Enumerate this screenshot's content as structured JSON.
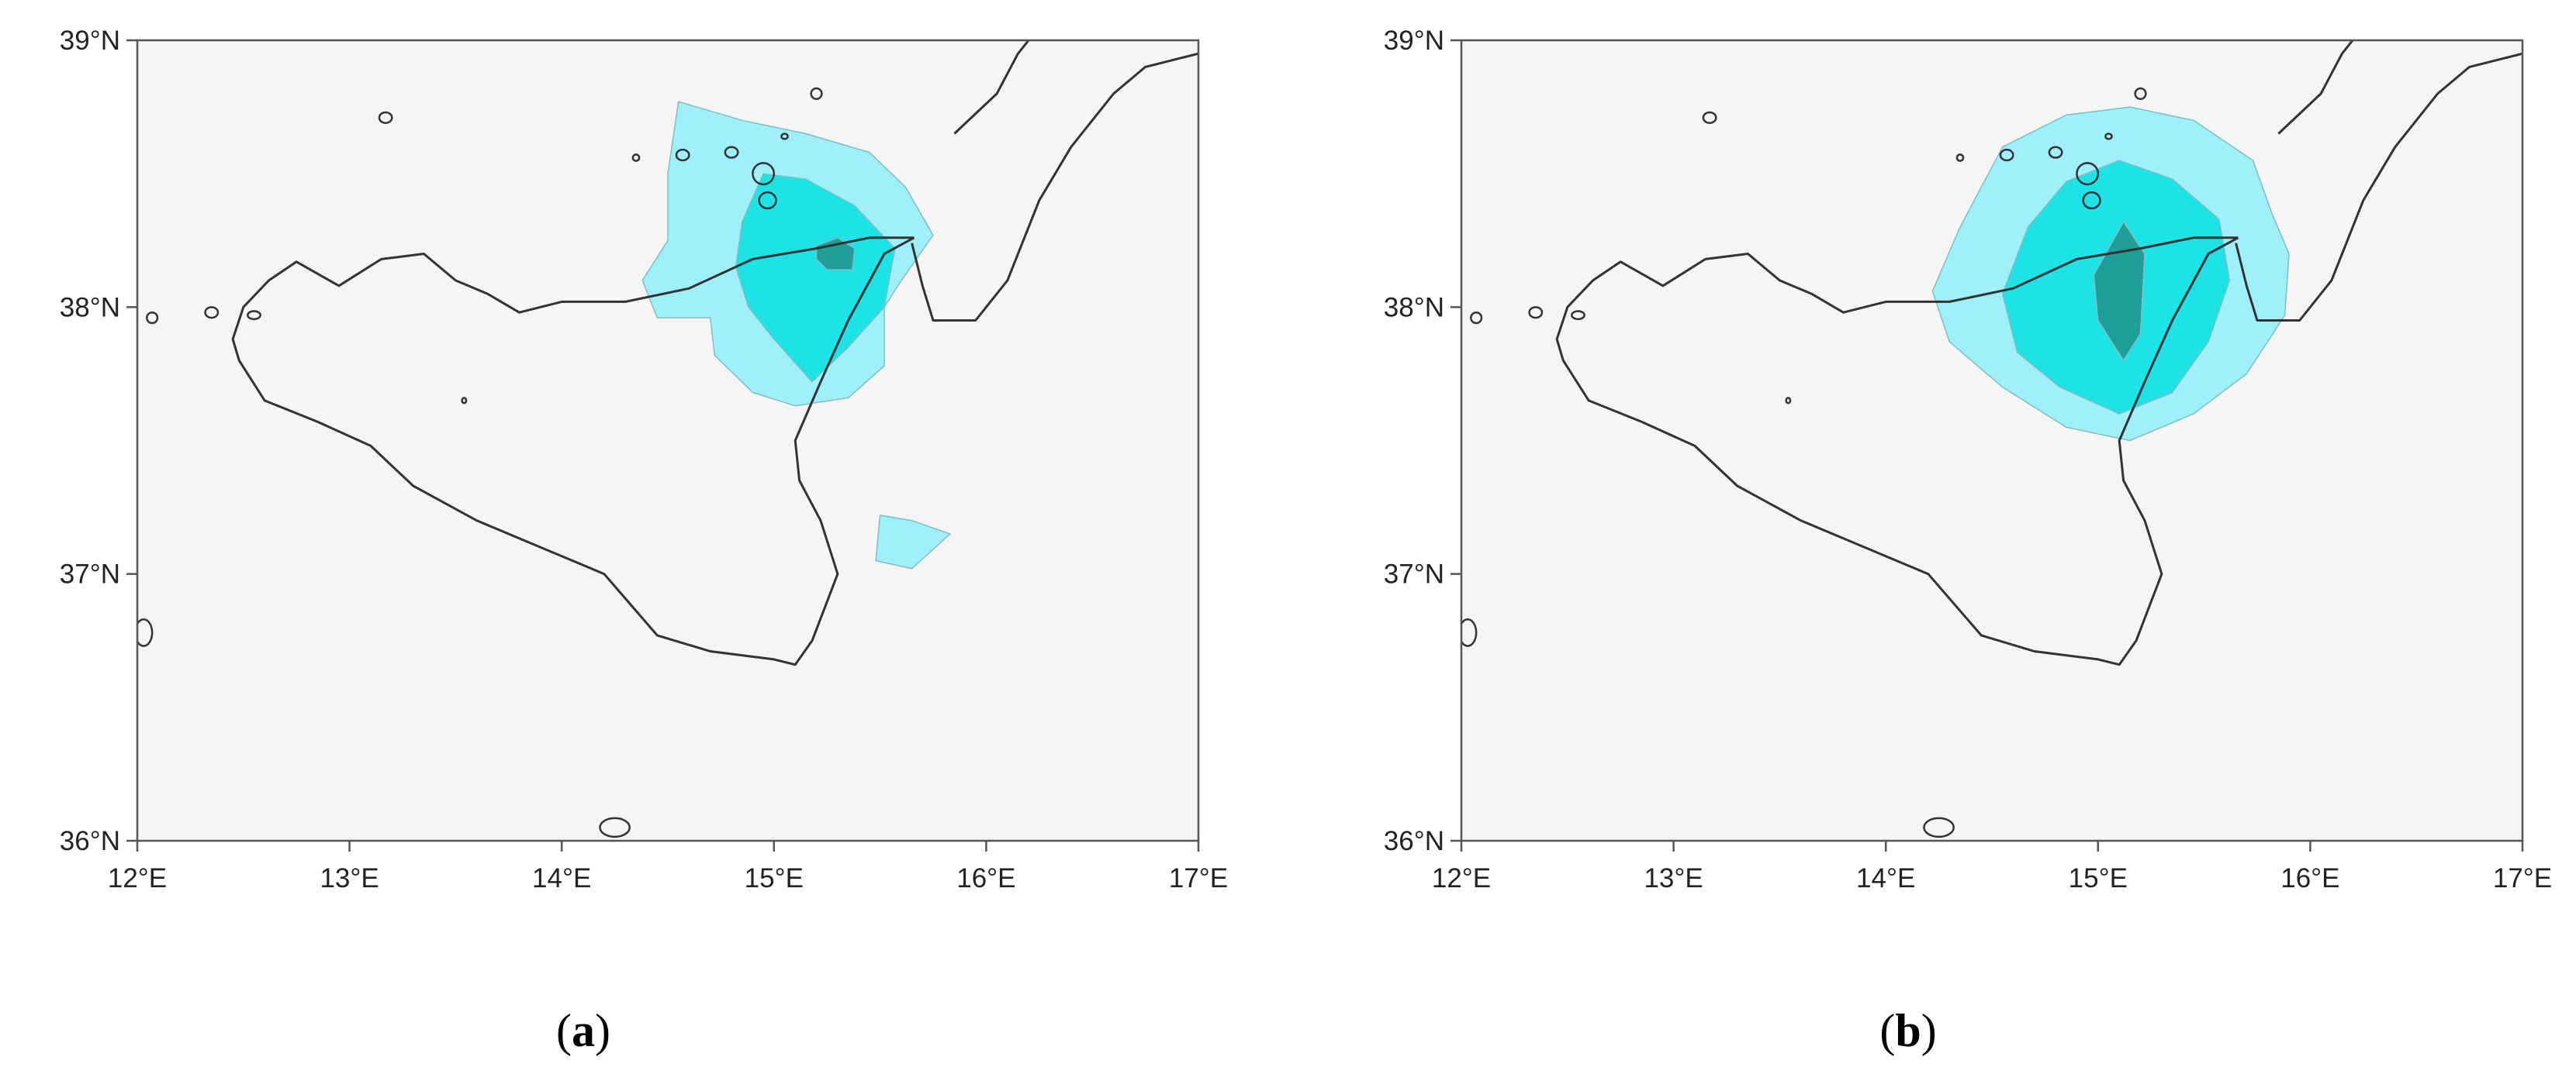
{
  "figure": {
    "panels": [
      {
        "caption": {
          "open": "(",
          "letter": "a",
          "close": ")"
        },
        "map_data": {
          "type": "map",
          "extent": {
            "lon": [
              12,
              17
            ],
            "lat": [
              36,
              39
            ]
          },
          "lon_ticks": [
            12,
            13,
            14,
            15,
            16,
            17
          ],
          "lat_ticks": [
            36,
            37,
            38,
            39
          ],
          "lon_tick_labels": [
            "12°E",
            "13°E",
            "14°E",
            "15°E",
            "16°E",
            "17°E"
          ],
          "lat_tick_labels": [
            "36°N",
            "37°N",
            "38°N",
            "39°N"
          ],
          "colors": {
            "background": "#f5f5f5",
            "frame": "#555555",
            "coast": "#333333"
          },
          "layers": [
            {
              "level": "low",
              "color": "#9ff0fb",
              "polygons": [
                [
                  [
                    14.55,
                    38.77
                  ],
                  [
                    14.85,
                    38.7
                  ],
                  [
                    15.15,
                    38.65
                  ],
                  [
                    15.45,
                    38.58
                  ],
                  [
                    15.62,
                    38.45
                  ],
                  [
                    15.75,
                    38.27
                  ],
                  [
                    15.6,
                    38.1
                  ],
                  [
                    15.52,
                    38.0
                  ],
                  [
                    15.52,
                    37.78
                  ],
                  [
                    15.35,
                    37.66
                  ],
                  [
                    15.1,
                    37.63
                  ],
                  [
                    14.9,
                    37.68
                  ],
                  [
                    14.72,
                    37.82
                  ],
                  [
                    14.7,
                    37.96
                  ],
                  [
                    14.45,
                    37.96
                  ],
                  [
                    14.38,
                    38.1
                  ],
                  [
                    14.5,
                    38.25
                  ],
                  [
                    14.5,
                    38.5
                  ]
                ],
                [
                  [
                    15.5,
                    37.22
                  ],
                  [
                    15.65,
                    37.2
                  ],
                  [
                    15.83,
                    37.15
                  ],
                  [
                    15.65,
                    37.02
                  ],
                  [
                    15.48,
                    37.05
                  ]
                ]
              ]
            },
            {
              "level": "mid",
              "color": "#1de2e6",
              "polygons": [
                [
                  [
                    14.95,
                    38.5
                  ],
                  [
                    15.15,
                    38.48
                  ],
                  [
                    15.38,
                    38.38
                  ],
                  [
                    15.57,
                    38.22
                  ],
                  [
                    15.52,
                    38.0
                  ],
                  [
                    15.35,
                    37.85
                  ],
                  [
                    15.18,
                    37.72
                  ],
                  [
                    15.0,
                    37.88
                  ],
                  [
                    14.88,
                    38.0
                  ],
                  [
                    14.82,
                    38.15
                  ],
                  [
                    14.85,
                    38.32
                  ]
                ]
              ]
            },
            {
              "level": "high",
              "color": "#1f9e9a",
              "polygons": [
                [
                  [
                    15.2,
                    38.23
                  ],
                  [
                    15.3,
                    38.26
                  ],
                  [
                    15.38,
                    38.22
                  ],
                  [
                    15.37,
                    38.14
                  ],
                  [
                    15.25,
                    38.14
                  ],
                  [
                    15.2,
                    38.18
                  ]
                ]
              ]
            }
          ]
        }
      },
      {
        "caption": {
          "open": "(",
          "letter": "b",
          "close": ")"
        },
        "map_data": {
          "type": "map",
          "extent": {
            "lon": [
              12,
              17
            ],
            "lat": [
              36,
              39
            ]
          },
          "lon_ticks": [
            12,
            13,
            14,
            15,
            16,
            17
          ],
          "lat_ticks": [
            36,
            37,
            38,
            39
          ],
          "lon_tick_labels": [
            "12°E",
            "13°E",
            "14°E",
            "15°E",
            "16°E",
            "17°E"
          ],
          "lat_tick_labels": [
            "36°N",
            "37°N",
            "38°N",
            "39°N"
          ],
          "colors": {
            "background": "#f5f5f5",
            "frame": "#555555",
            "coast": "#333333"
          },
          "layers": [
            {
              "level": "low",
              "color": "#9ff0fb",
              "polygons": [
                [
                  [
                    14.55,
                    38.6
                  ],
                  [
                    14.85,
                    38.72
                  ],
                  [
                    15.15,
                    38.75
                  ],
                  [
                    15.45,
                    38.7
                  ],
                  [
                    15.73,
                    38.55
                  ],
                  [
                    15.82,
                    38.35
                  ],
                  [
                    15.9,
                    38.2
                  ],
                  [
                    15.88,
                    37.97
                  ],
                  [
                    15.7,
                    37.75
                  ],
                  [
                    15.45,
                    37.6
                  ],
                  [
                    15.15,
                    37.5
                  ],
                  [
                    14.85,
                    37.55
                  ],
                  [
                    14.55,
                    37.7
                  ],
                  [
                    14.3,
                    37.87
                  ],
                  [
                    14.22,
                    38.06
                  ],
                  [
                    14.35,
                    38.3
                  ]
                ]
              ]
            },
            {
              "level": "mid",
              "color": "#1de2e6",
              "polygons": [
                [
                  [
                    14.85,
                    38.47
                  ],
                  [
                    15.1,
                    38.55
                  ],
                  [
                    15.35,
                    38.48
                  ],
                  [
                    15.57,
                    38.33
                  ],
                  [
                    15.62,
                    38.1
                  ],
                  [
                    15.52,
                    37.87
                  ],
                  [
                    15.35,
                    37.68
                  ],
                  [
                    15.1,
                    37.6
                  ],
                  [
                    14.82,
                    37.7
                  ],
                  [
                    14.62,
                    37.83
                  ],
                  [
                    14.55,
                    38.05
                  ],
                  [
                    14.67,
                    38.3
                  ]
                ]
              ]
            },
            {
              "level": "high",
              "color": "#1f9e9a",
              "polygons": [
                [
                  [
                    15.12,
                    38.32
                  ],
                  [
                    15.22,
                    38.2
                  ],
                  [
                    15.2,
                    37.9
                  ],
                  [
                    15.12,
                    37.8
                  ],
                  [
                    15.0,
                    37.95
                  ],
                  [
                    14.98,
                    38.12
                  ]
                ]
              ]
            }
          ]
        }
      }
    ]
  }
}
